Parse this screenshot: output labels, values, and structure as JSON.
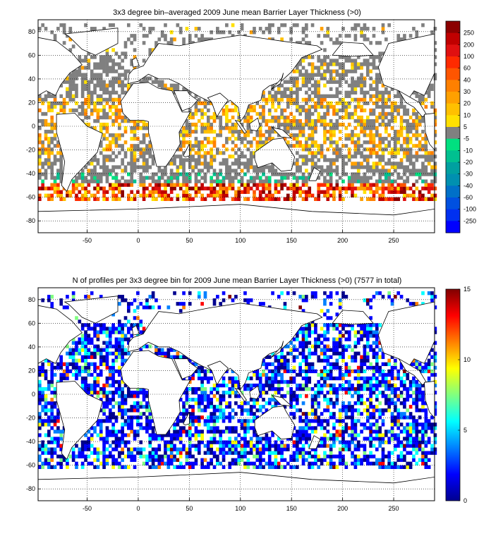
{
  "panels": [
    {
      "id": "blt",
      "title": "3x3 degree bin–averaged 2009 June mean Barrier Layer Thickness (>0)",
      "x_ticks": [
        "-50",
        "0",
        "50",
        "100",
        "150",
        "200",
        "250"
      ],
      "y_ticks": [
        "80",
        "60",
        "40",
        "20",
        "0",
        "-20",
        "-40",
        "-60",
        "-80"
      ],
      "colorbar": {
        "kind": "discrete",
        "labels": [
          "250",
          "200",
          "100",
          "60",
          "40",
          "30",
          "20",
          "10",
          "5",
          "-5",
          "-10",
          "-20",
          "-30",
          "-40",
          "-60",
          "-100",
          "-250"
        ],
        "colors": [
          "#8b0000",
          "#c00000",
          "#e01010",
          "#ff2a00",
          "#ff5500",
          "#ff8000",
          "#ffa000",
          "#ffc000",
          "#ffe000",
          "#808080",
          "#00e080",
          "#00c090",
          "#00a0a0",
          "#0090b0",
          "#0070c8",
          "#0050e0",
          "#0030f0",
          "#0000ff"
        ]
      }
    },
    {
      "id": "count",
      "title": "N of profiles per 3x3 degree bin for 2009 June mean Barrier Layer Thickness (>0) (7577 in total)",
      "x_ticks": [
        "-50",
        "0",
        "50",
        "100",
        "150",
        "200",
        "250"
      ],
      "y_ticks": [
        "80",
        "60",
        "40",
        "20",
        "0",
        "-20",
        "-40",
        "-60",
        "-80"
      ],
      "colorbar": {
        "kind": "continuous",
        "labels": [
          "15",
          "10",
          "5",
          "0"
        ],
        "colors": [
          "#00008f",
          "#0000ff",
          "#0080ff",
          "#00ffff",
          "#80ff80",
          "#ffff00",
          "#ff8000",
          "#ff0000",
          "#800000"
        ]
      }
    }
  ]
}
